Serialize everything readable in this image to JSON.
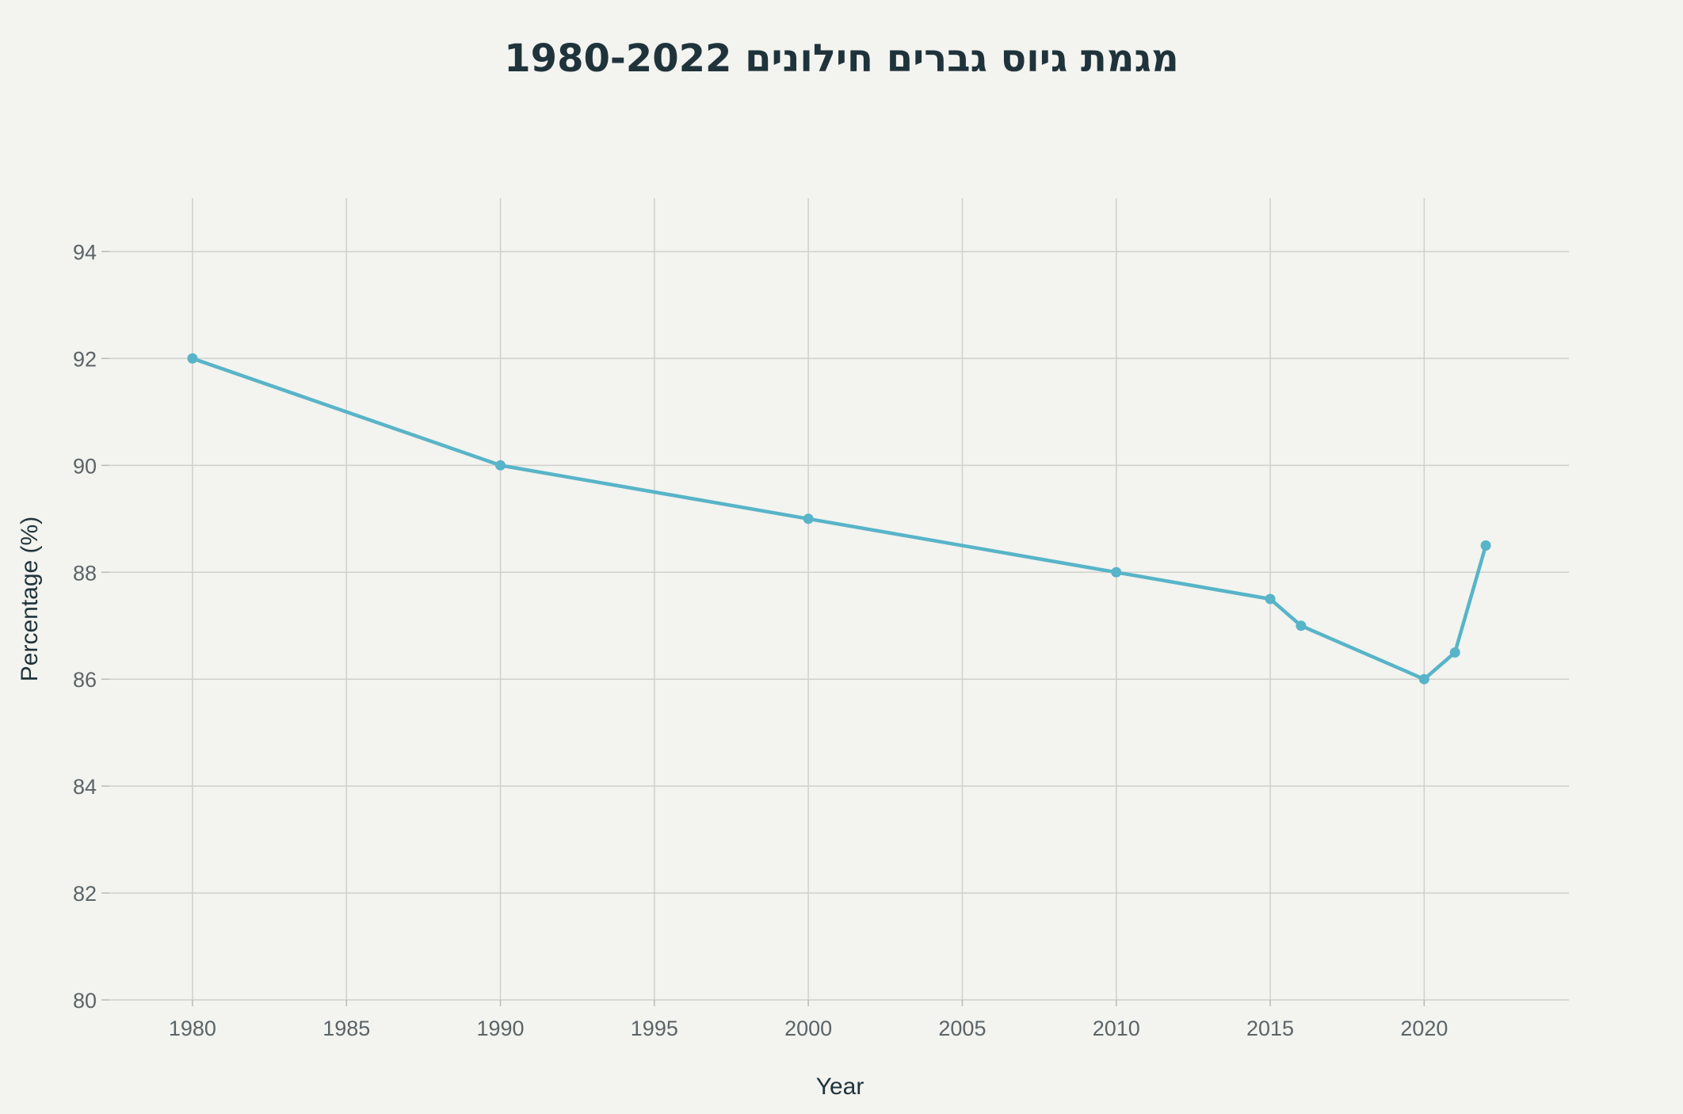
{
  "chart_data": {
    "type": "line",
    "title": "מגמת גיוס גברים חילונים 1980-2022",
    "xlabel": "Year",
    "ylabel": "Percentage (%)",
    "xlim": [
      1977.3,
      2024.7
    ],
    "ylim": [
      80,
      95
    ],
    "x_ticks": [
      1980,
      1985,
      1990,
      1995,
      2000,
      2005,
      2010,
      2015,
      2020
    ],
    "y_ticks": [
      80,
      82,
      84,
      86,
      88,
      90,
      92,
      94
    ],
    "grid": true,
    "legend": "none",
    "series": [
      {
        "x": [
          1980,
          1990,
          2000,
          2010,
          2015,
          2016,
          2020,
          2021,
          2022
        ],
        "values": [
          92,
          90,
          89,
          88,
          87.5,
          87,
          86,
          86.5,
          88.5
        ],
        "color": "#58b4c8"
      }
    ]
  }
}
